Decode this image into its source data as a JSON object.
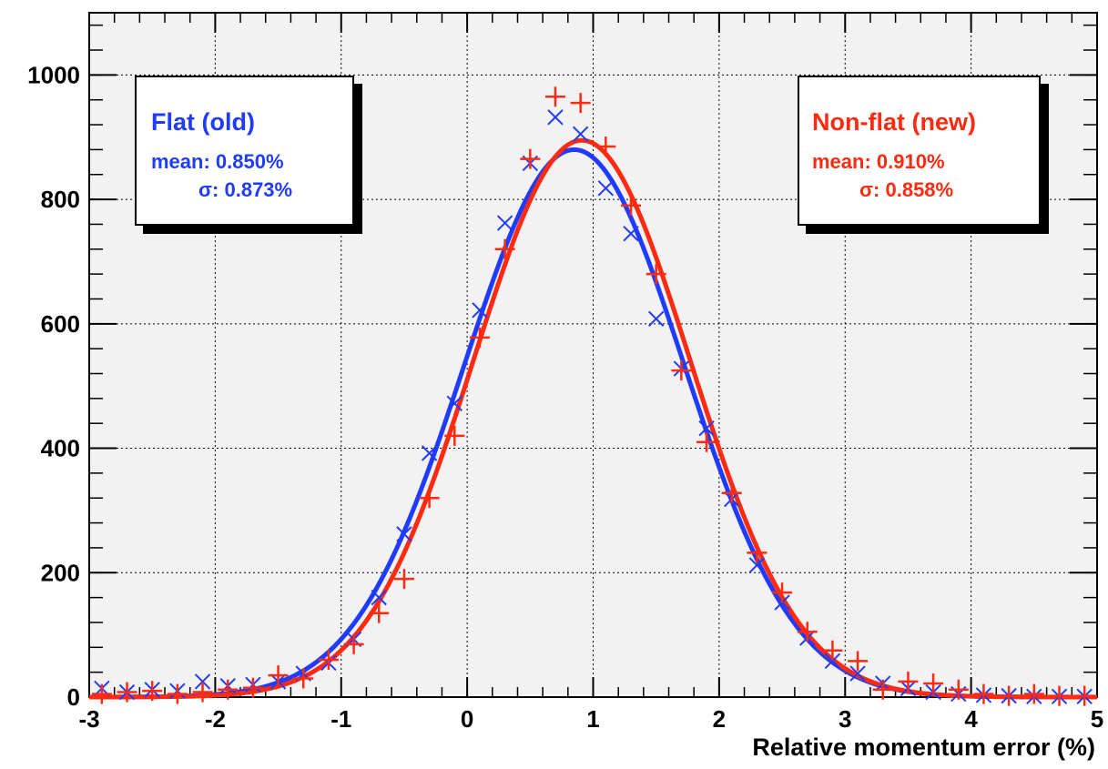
{
  "colors": {
    "flat": "#1f3bff",
    "nonflat": "#ff2a10",
    "frame_bg": "#f2f2f2",
    "grid": "#000000"
  },
  "legend": {
    "flat": {
      "title": "Flat (old)",
      "mean_label": "mean: 0.850%",
      "sigma_label": "σ: 0.873%"
    },
    "nonflat": {
      "title": "Non-flat (new)",
      "mean_label": "mean: 0.910%",
      "sigma_label": "σ: 0.858%"
    }
  },
  "chart_data": {
    "type": "scatter",
    "xlabel": "Relative momentum error (%)",
    "ylabel": "",
    "xlim": [
      -3,
      5
    ],
    "ylim": [
      0,
      1100
    ],
    "xticks": [
      "-3",
      "-2",
      "-1",
      "0",
      "1",
      "2",
      "3",
      "4",
      "5"
    ],
    "yticks": [
      "0",
      "200",
      "400",
      "600",
      "800",
      "1000"
    ],
    "grid": true,
    "series": [
      {
        "name": "Flat (old)",
        "marker": "x",
        "x": [
          -2.9,
          -2.7,
          -2.5,
          -2.3,
          -2.1,
          -1.9,
          -1.7,
          -1.5,
          -1.3,
          -1.1,
          -0.9,
          -0.7,
          -0.5,
          -0.3,
          -0.1,
          0.1,
          0.3,
          0.5,
          0.7,
          0.9,
          1.1,
          1.3,
          1.5,
          1.7,
          1.9,
          2.1,
          2.3,
          2.5,
          2.7,
          2.9,
          3.1,
          3.3,
          3.5,
          3.7,
          3.9,
          4.1,
          4.3,
          4.5,
          4.7,
          4.9
        ],
        "y": [
          14,
          8,
          12,
          10,
          25,
          18,
          20,
          25,
          38,
          55,
          93,
          160,
          262,
          392,
          472,
          622,
          762,
          858,
          932,
          905,
          818,
          745,
          608,
          528,
          432,
          318,
          212,
          152,
          95,
          58,
          38,
          22,
          14,
          8,
          5,
          3,
          2,
          1,
          1,
          1
        ],
        "fit": {
          "mean": 0.85,
          "sigma": 0.873,
          "amplitude": 880
        }
      },
      {
        "name": "Non-flat (new)",
        "marker": "+",
        "x": [
          -2.9,
          -2.7,
          -2.5,
          -2.3,
          -2.1,
          -1.9,
          -1.7,
          -1.5,
          -1.3,
          -1.1,
          -0.9,
          -0.7,
          -0.5,
          -0.3,
          -0.1,
          0.1,
          0.3,
          0.5,
          0.7,
          0.9,
          1.1,
          1.3,
          1.5,
          1.7,
          1.9,
          2.1,
          2.3,
          2.5,
          2.7,
          2.9,
          3.1,
          3.3,
          3.5,
          3.7,
          3.9,
          4.1,
          4.3,
          4.5,
          4.7,
          4.9
        ],
        "y": [
          5,
          8,
          10,
          5,
          8,
          12,
          15,
          35,
          30,
          60,
          85,
          135,
          190,
          320,
          420,
          578,
          720,
          865,
          965,
          955,
          885,
          790,
          680,
          525,
          410,
          328,
          232,
          168,
          105,
          75,
          58,
          12,
          25,
          22,
          12,
          5,
          2,
          5,
          2,
          2
        ],
        "fit": {
          "mean": 0.91,
          "sigma": 0.858,
          "amplitude": 895
        }
      }
    ]
  }
}
